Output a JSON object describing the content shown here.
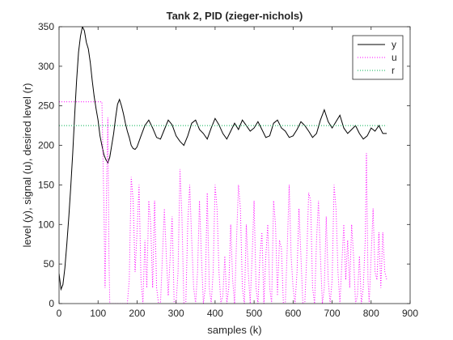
{
  "chart_data": {
    "type": "line",
    "title": "Tank 2, PID (zieger-nichols)",
    "xlabel": "samples (k)",
    "ylabel": "level (y), signal (u), desired level (r)",
    "xlim": [
      0,
      900
    ],
    "ylim": [
      0,
      350
    ],
    "xticks": [
      "0",
      "100",
      "200",
      "300",
      "400",
      "500",
      "600",
      "700",
      "800",
      "900"
    ],
    "yticks": [
      "0",
      "50",
      "100",
      "150",
      "200",
      "250",
      "300",
      "350"
    ],
    "grid": false,
    "legend": {
      "placement": "top-right"
    },
    "series": [
      {
        "name": "y",
        "color": "#000000",
        "style": "solid",
        "x": [
          0,
          5,
          10,
          15,
          20,
          25,
          30,
          35,
          40,
          45,
          50,
          55,
          60,
          65,
          70,
          75,
          80,
          85,
          90,
          95,
          100,
          105,
          110,
          115,
          120,
          125,
          130,
          135,
          140,
          145,
          150,
          155,
          160,
          165,
          170,
          175,
          180,
          185,
          190,
          195,
          200,
          210,
          220,
          230,
          240,
          250,
          260,
          270,
          280,
          290,
          300,
          310,
          320,
          330,
          340,
          350,
          360,
          370,
          380,
          390,
          400,
          410,
          420,
          430,
          440,
          450,
          460,
          470,
          480,
          490,
          500,
          510,
          520,
          530,
          540,
          550,
          560,
          570,
          580,
          590,
          600,
          610,
          620,
          630,
          640,
          650,
          660,
          670,
          680,
          690,
          700,
          710,
          720,
          730,
          740,
          750,
          760,
          770,
          780,
          790,
          800,
          810,
          820,
          830,
          840
        ],
        "y": [
          38,
          18,
          24,
          45,
          75,
          110,
          148,
          190,
          238,
          282,
          318,
          338,
          350,
          345,
          330,
          322,
          305,
          282,
          262,
          246,
          232,
          212,
          200,
          188,
          182,
          178,
          185,
          200,
          215,
          235,
          252,
          258,
          250,
          240,
          228,
          218,
          210,
          200,
          196,
          195,
          198,
          212,
          225,
          232,
          222,
          210,
          208,
          220,
          232,
          226,
          212,
          205,
          200,
          212,
          228,
          232,
          220,
          215,
          208,
          222,
          234,
          226,
          215,
          208,
          218,
          228,
          220,
          232,
          225,
          218,
          222,
          230,
          220,
          210,
          212,
          228,
          232,
          222,
          218,
          210,
          212,
          220,
          230,
          225,
          218,
          210,
          215,
          232,
          245,
          230,
          222,
          230,
          238,
          222,
          215,
          220,
          225,
          215,
          208,
          212,
          222,
          218,
          225,
          215,
          215
        ]
      },
      {
        "name": "u",
        "color": "#ff00ff",
        "style": "dotted",
        "x": [
          0,
          1,
          30,
          31,
          110,
          115,
          118,
          122,
          125,
          128,
          130,
          133,
          136,
          140,
          145,
          150,
          155,
          160,
          165,
          170,
          175,
          180,
          185,
          190,
          195,
          200,
          205,
          210,
          215,
          220,
          225,
          230,
          235,
          240,
          245,
          250,
          255,
          260,
          265,
          270,
          275,
          280,
          285,
          290,
          295,
          300,
          305,
          310,
          315,
          320,
          325,
          330,
          335,
          340,
          345,
          350,
          355,
          360,
          365,
          370,
          375,
          380,
          385,
          390,
          395,
          400,
          405,
          410,
          415,
          420,
          425,
          430,
          435,
          440,
          445,
          450,
          455,
          460,
          465,
          470,
          475,
          480,
          485,
          490,
          495,
          500,
          505,
          510,
          515,
          520,
          525,
          530,
          535,
          540,
          545,
          550,
          555,
          560,
          565,
          570,
          575,
          580,
          585,
          590,
          595,
          600,
          605,
          610,
          615,
          620,
          625,
          630,
          635,
          640,
          645,
          650,
          655,
          660,
          665,
          670,
          675,
          680,
          685,
          690,
          695,
          700,
          705,
          710,
          715,
          720,
          725,
          730,
          735,
          740,
          745,
          750,
          755,
          760,
          765,
          770,
          775,
          780,
          785,
          788,
          792,
          795,
          800,
          805,
          810,
          815,
          820,
          825,
          830,
          835,
          840
        ],
        "y": [
          255,
          255,
          255,
          255,
          255,
          120,
          20,
          150,
          235,
          60,
          0,
          0,
          0,
          0,
          0,
          0,
          0,
          0,
          0,
          0,
          0,
          30,
          160,
          130,
          40,
          90,
          150,
          30,
          0,
          80,
          20,
          130,
          100,
          20,
          130,
          20,
          0,
          0,
          60,
          120,
          60,
          10,
          60,
          110,
          0,
          0,
          40,
          170,
          110,
          0,
          0,
          100,
          150,
          80,
          20,
          0,
          40,
          130,
          60,
          0,
          20,
          140,
          20,
          0,
          40,
          150,
          120,
          40,
          0,
          10,
          60,
          0,
          20,
          100,
          30,
          0,
          80,
          150,
          120,
          20,
          0,
          100,
          40,
          0,
          60,
          130,
          20,
          0,
          60,
          90,
          0,
          60,
          100,
          20,
          0,
          130,
          100,
          10,
          80,
          70,
          0,
          0,
          70,
          150,
          60,
          20,
          0,
          40,
          120,
          60,
          0,
          0,
          60,
          140,
          130,
          20,
          0,
          80,
          130,
          60,
          0,
          20,
          110,
          30,
          0,
          30,
          150,
          120,
          40,
          0,
          50,
          100,
          30,
          80,
          20,
          100,
          60,
          0,
          10,
          60,
          0,
          20,
          80,
          190,
          30,
          0,
          60,
          120,
          40,
          30,
          90,
          20,
          90,
          40,
          30
        ]
      },
      {
        "name": "r",
        "color": "#00b050",
        "style": "dotted",
        "x": [
          0,
          840
        ],
        "y": [
          225,
          225
        ]
      }
    ]
  }
}
